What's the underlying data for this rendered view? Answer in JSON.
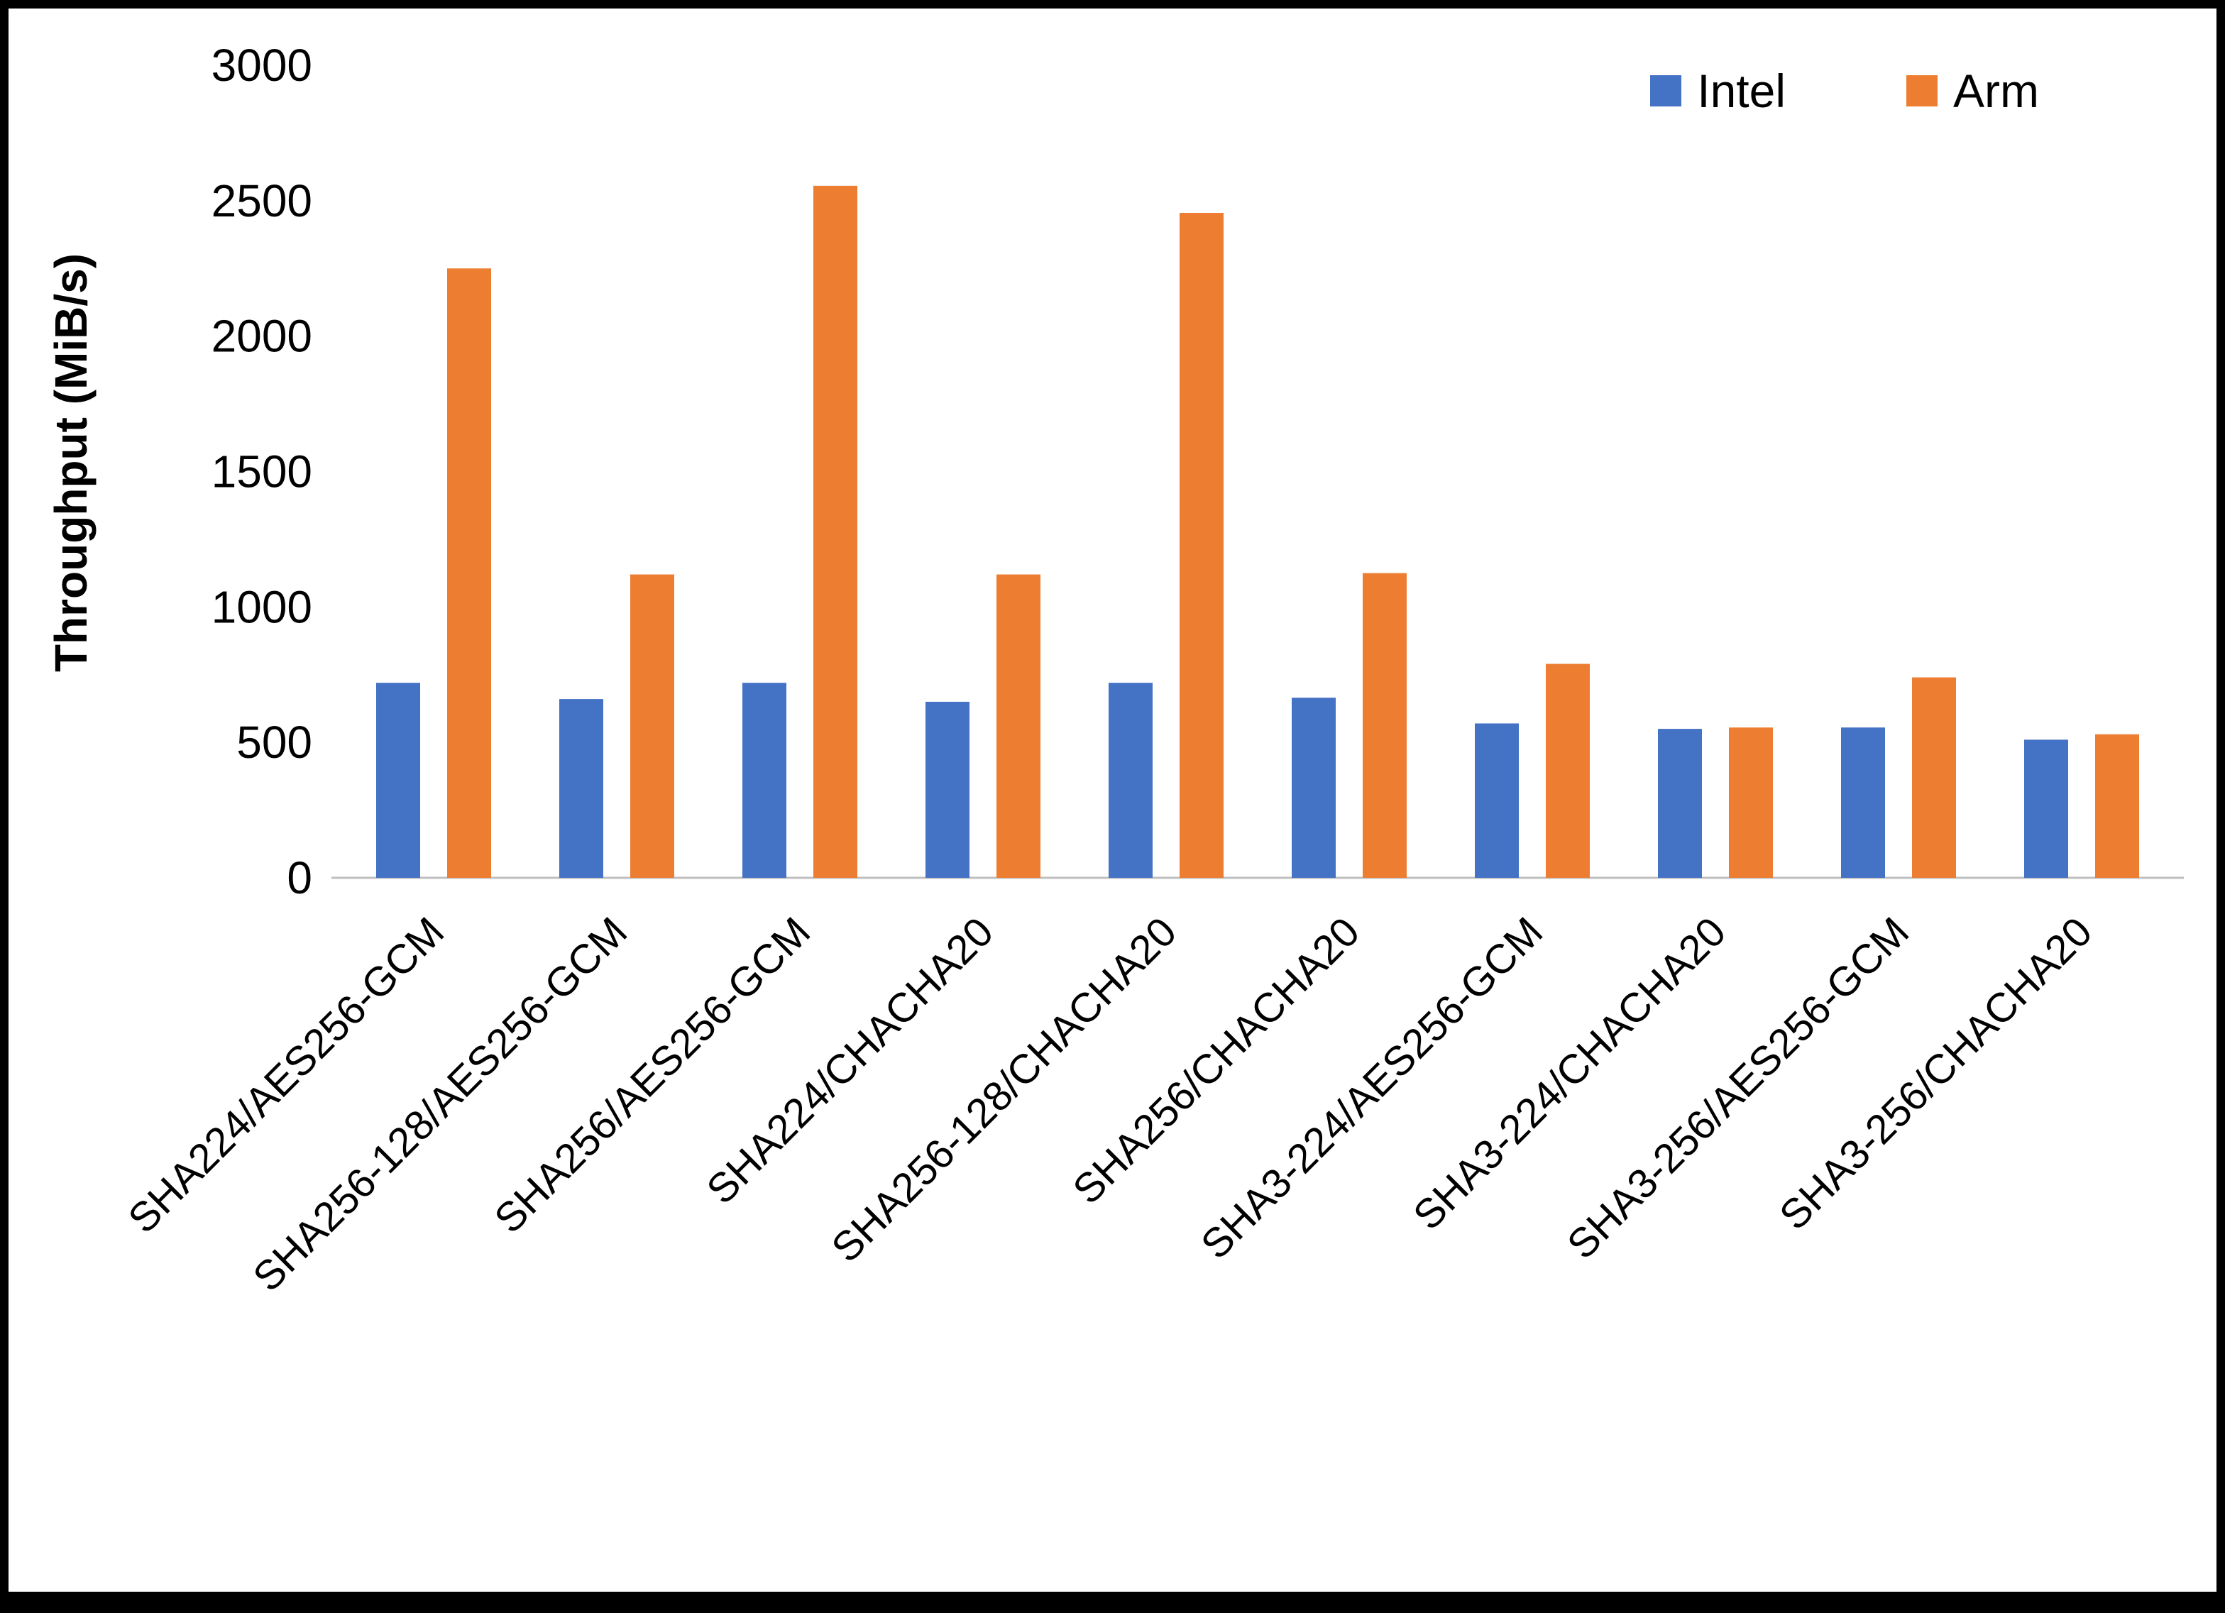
{
  "chart_data": {
    "type": "bar",
    "title": "",
    "xlabel": "",
    "ylabel": "Throughput (MiB/s)",
    "ylim": [
      0,
      3000
    ],
    "yticks": [
      0,
      500,
      1000,
      1500,
      2000,
      2500,
      3000
    ],
    "grid": false,
    "legend_position": "top-right",
    "categories": [
      "SHA224/AES256-GCM",
      "SHA256-128/AES256-GCM",
      "SHA256/AES256-GCM",
      "SHA224/CHACHA20",
      "SHA256-128/CHACHA20",
      "SHA256/CHACHA20",
      "SHA3-224/AES256-GCM",
      "SHA3-224/CHACHA20",
      "SHA3-256/AES256-GCM",
      "SHA3-256/CHACHA20"
    ],
    "series": [
      {
        "name": "Intel",
        "color": "#4472C4",
        "values": [
          720,
          660,
          720,
          650,
          720,
          665,
          570,
          550,
          555,
          510
        ]
      },
      {
        "name": "Arm",
        "color": "#ED7D31",
        "values": [
          2250,
          1120,
          2555,
          1120,
          2455,
          1125,
          790,
          555,
          740,
          530
        ]
      }
    ]
  },
  "colors": {
    "axis_line": "#BFBFBF",
    "text": "#000000",
    "background": "#FFFFFF",
    "border": "#000000"
  }
}
